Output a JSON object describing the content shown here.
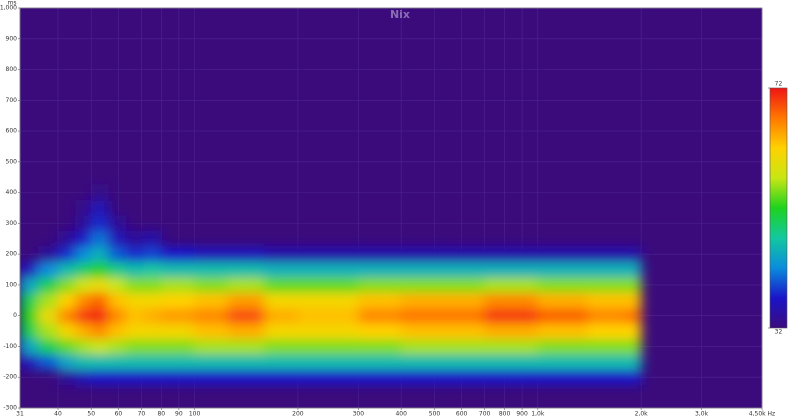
{
  "chart_data": {
    "type": "heatmap",
    "title": "Nix",
    "ylabel": "ms",
    "log_x": true,
    "grid": true,
    "background": "#3b0b7c",
    "grid_color": "#4d2590",
    "xlim": [
      31,
      4500
    ],
    "ylim": [
      -300,
      1000
    ],
    "xticks": [
      31,
      40,
      50,
      60,
      70,
      80,
      90,
      100,
      200,
      300,
      400,
      500,
      600,
      700,
      800,
      900,
      {
        "value": 1000,
        "label": "1,0k"
      },
      {
        "value": 2000,
        "label": "2,0k"
      },
      {
        "value": 3000,
        "label": "3,0k"
      },
      {
        "value": 4500,
        "label": "4,50k Hz"
      }
    ],
    "yticks": [
      -300,
      -200,
      -100,
      0,
      100,
      200,
      300,
      400,
      500,
      600,
      700,
      800,
      900,
      {
        "value": 1000,
        "label": "1,000"
      }
    ],
    "x_bins": [
      31,
      35,
      40,
      45,
      50,
      56,
      63,
      71,
      80,
      100,
      125,
      160,
      200,
      300,
      400,
      500,
      700,
      1000,
      1400,
      1800,
      2000
    ],
    "y_bins": [
      -225,
      -175,
      -125,
      -75,
      -25,
      25,
      75,
      125,
      175,
      225,
      275,
      325,
      375,
      425
    ],
    "z": [
      [
        null,
        null,
        34,
        36,
        37,
        37,
        37,
        37,
        37,
        37,
        37,
        37,
        37,
        37,
        37,
        37,
        37,
        37,
        37,
        37
      ],
      [
        36,
        40,
        44,
        46,
        46,
        46,
        46,
        46,
        46,
        46,
        46,
        46,
        46,
        46,
        46,
        46,
        46,
        46,
        46,
        46
      ],
      [
        44,
        50,
        54,
        56,
        57,
        56,
        55,
        55,
        55,
        56,
        56,
        55,
        55,
        55,
        56,
        56,
        56,
        55,
        55,
        55
      ],
      [
        50,
        56,
        61,
        64,
        66,
        63,
        61,
        61,
        61,
        63,
        64,
        61,
        61,
        62,
        63,
        63,
        64,
        63,
        62,
        62
      ],
      [
        52,
        60,
        66,
        70,
        71,
        66,
        63,
        64,
        65,
        66,
        69,
        64,
        63,
        66,
        67,
        67,
        70,
        68,
        66,
        67
      ],
      [
        50,
        56,
        62,
        66,
        68,
        63,
        61,
        61,
        62,
        63,
        65,
        61,
        61,
        63,
        64,
        64,
        66,
        64,
        63,
        63
      ],
      [
        44,
        50,
        55,
        58,
        60,
        57,
        55,
        55,
        56,
        55,
        56,
        54,
        54,
        55,
        55,
        55,
        56,
        55,
        55,
        55
      ],
      [
        36,
        42,
        46,
        49,
        52,
        48,
        46,
        47,
        46,
        46,
        46,
        45,
        45,
        45,
        45,
        45,
        45,
        45,
        45,
        45
      ],
      [
        null,
        34,
        38,
        42,
        45,
        40,
        38,
        39,
        37,
        36,
        36,
        35,
        35,
        35,
        35,
        35,
        35,
        35,
        35,
        35
      ],
      [
        null,
        null,
        34,
        37,
        41,
        36,
        34,
        35,
        null,
        null,
        null,
        null,
        null,
        null,
        null,
        null,
        null,
        null,
        null,
        null
      ],
      [
        null,
        null,
        null,
        34,
        38,
        34,
        null,
        null,
        null,
        null,
        null,
        null,
        null,
        null,
        null,
        null,
        null,
        null,
        null,
        null
      ],
      [
        null,
        null,
        null,
        33,
        36,
        null,
        null,
        null,
        null,
        null,
        null,
        null,
        null,
        null,
        null,
        null,
        null,
        null,
        null,
        null
      ],
      [
        null,
        null,
        null,
        null,
        33,
        null,
        null,
        null,
        null,
        null,
        null,
        null,
        null,
        null,
        null,
        null,
        null,
        null,
        null,
        null
      ]
    ],
    "zlim": [
      32,
      72
    ],
    "zticks": [
      32,
      72
    ],
    "colorscale": [
      "#3b0b7c",
      "#1a14c8",
      "#0a8cdc",
      "#12c8a0",
      "#1ed21e",
      "#c8e614",
      "#ffd200",
      "#ff7800",
      "#f01414"
    ]
  }
}
